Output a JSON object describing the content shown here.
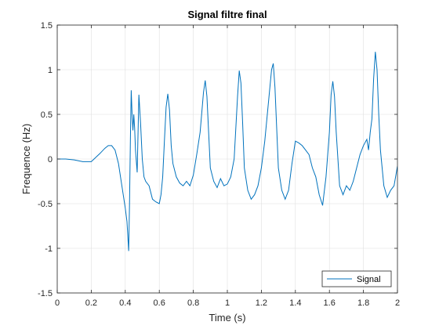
{
  "chart_data": {
    "type": "line",
    "title": "Signal filtre final",
    "xlabel": "Time (s)",
    "ylabel": "Frequence (Hz)",
    "xlim": [
      0,
      2
    ],
    "ylim": [
      -1.5,
      1.5
    ],
    "xticks": [
      0,
      0.2,
      0.4,
      0.6,
      0.8,
      1,
      1.2,
      1.4,
      1.6,
      1.8,
      2
    ],
    "xtick_labels": [
      "0",
      "0.2",
      "0.4",
      "0.6",
      "0.8",
      "1",
      "1.2",
      "1.4",
      "1.6",
      "1.8",
      "2"
    ],
    "yticks": [
      -1.5,
      -1,
      -0.5,
      0,
      0.5,
      1,
      1.5
    ],
    "ytick_labels": [
      "-1.5",
      "-1",
      "-0.5",
      "0",
      "0.5",
      "1",
      "1.5"
    ],
    "grid": true,
    "legend_position": "bottom-right",
    "line_color": "#0072BD",
    "series": [
      {
        "name": "Signal",
        "x": [
          0,
          0.05,
          0.1,
          0.15,
          0.2,
          0.25,
          0.28,
          0.3,
          0.32,
          0.34,
          0.36,
          0.38,
          0.4,
          0.41,
          0.42,
          0.425,
          0.43,
          0.435,
          0.44,
          0.445,
          0.45,
          0.455,
          0.46,
          0.47,
          0.48,
          0.49,
          0.5,
          0.51,
          0.52,
          0.54,
          0.56,
          0.58,
          0.6,
          0.61,
          0.62,
          0.63,
          0.64,
          0.65,
          0.66,
          0.67,
          0.68,
          0.7,
          0.72,
          0.74,
          0.76,
          0.78,
          0.8,
          0.82,
          0.84,
          0.86,
          0.87,
          0.88,
          0.89,
          0.9,
          0.92,
          0.94,
          0.96,
          0.98,
          1.0,
          1.02,
          1.04,
          1.06,
          1.07,
          1.08,
          1.09,
          1.1,
          1.12,
          1.14,
          1.16,
          1.18,
          1.2,
          1.22,
          1.24,
          1.26,
          1.27,
          1.28,
          1.29,
          1.3,
          1.32,
          1.34,
          1.36,
          1.38,
          1.4,
          1.42,
          1.44,
          1.46,
          1.48,
          1.5,
          1.52,
          1.54,
          1.56,
          1.58,
          1.6,
          1.61,
          1.62,
          1.63,
          1.64,
          1.66,
          1.68,
          1.7,
          1.72,
          1.74,
          1.76,
          1.78,
          1.8,
          1.82,
          1.83,
          1.84,
          1.85,
          1.86,
          1.87,
          1.88,
          1.89,
          1.9,
          1.92,
          1.94,
          1.96,
          1.98,
          2.0
        ],
        "y": [
          0,
          0,
          -0.01,
          -0.03,
          -0.03,
          0.06,
          0.12,
          0.15,
          0.15,
          0.1,
          -0.05,
          -0.3,
          -0.55,
          -0.7,
          -1.03,
          -0.5,
          0.2,
          0.77,
          0.5,
          0.32,
          0.5,
          0.35,
          0.1,
          -0.15,
          0.72,
          0.4,
          0.0,
          -0.2,
          -0.25,
          -0.3,
          -0.45,
          -0.48,
          -0.5,
          -0.4,
          -0.2,
          0.2,
          0.58,
          0.73,
          0.55,
          0.15,
          -0.05,
          -0.2,
          -0.27,
          -0.3,
          -0.25,
          -0.3,
          -0.18,
          0.05,
          0.3,
          0.75,
          0.88,
          0.7,
          0.3,
          -0.1,
          -0.25,
          -0.32,
          -0.22,
          -0.3,
          -0.28,
          -0.2,
          0.0,
          0.7,
          0.99,
          0.85,
          0.4,
          -0.1,
          -0.35,
          -0.45,
          -0.4,
          -0.3,
          -0.1,
          0.2,
          0.6,
          1.0,
          1.07,
          0.8,
          0.35,
          -0.1,
          -0.35,
          -0.45,
          -0.35,
          -0.05,
          0.2,
          0.18,
          0.15,
          0.1,
          0.05,
          -0.1,
          -0.2,
          -0.4,
          -0.52,
          -0.2,
          0.3,
          0.72,
          0.87,
          0.7,
          0.3,
          -0.3,
          -0.4,
          -0.3,
          -0.35,
          -0.25,
          -0.1,
          0.05,
          0.15,
          0.22,
          0.1,
          0.3,
          0.45,
          0.9,
          1.2,
          1.0,
          0.5,
          0.1,
          -0.3,
          -0.43,
          -0.35,
          -0.3,
          -0.08
        ]
      }
    ]
  }
}
